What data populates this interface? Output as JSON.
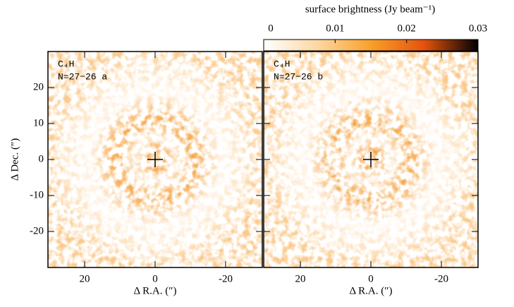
{
  "colorbar": {
    "label": "surface brightness (Jy beam⁻¹)",
    "lim": [
      0,
      0.03
    ],
    "ticks": [
      0,
      0.01,
      0.02,
      0.03
    ]
  },
  "chart_data": [
    {
      "type": "image",
      "title": "C₄H",
      "subtitle": "N=27−26 a",
      "xlabel": "Δ R.A. (″)",
      "ylabel": "Δ Dec. (″)",
      "xlim": [
        30.4,
        -30.4
      ],
      "ylim": [
        -30,
        30
      ],
      "xticks": [
        20,
        0,
        -20
      ],
      "yticks": [
        20,
        10,
        0,
        -10,
        -20
      ],
      "center": [
        0,
        0
      ]
    },
    {
      "type": "image",
      "title": "C₄H",
      "subtitle": "N=27−26 b",
      "xlabel": "Δ R.A. (″)",
      "xlim": [
        30.4,
        -30.4
      ],
      "ylim": [
        -30,
        30
      ],
      "xticks": [
        20,
        0,
        -20
      ],
      "yticks": [
        20,
        10,
        0,
        -10,
        -20
      ],
      "center": [
        0,
        0
      ]
    }
  ]
}
